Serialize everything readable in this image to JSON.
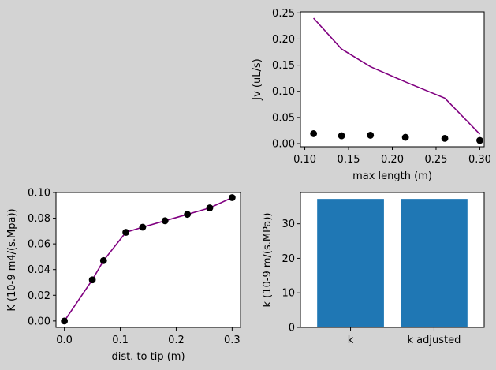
{
  "chart_data": [
    {
      "id": "jv",
      "type": "line",
      "xlabel": "max length (m)",
      "ylabel": "Jv (uL/s)",
      "xlim": [
        0.095,
        0.305
      ],
      "ylim": [
        -0.006,
        0.252
      ],
      "xticks": [
        0.1,
        0.15,
        0.2,
        0.25,
        0.3
      ],
      "xtick_labels": [
        "0.10",
        "0.15",
        "0.20",
        "0.25",
        "0.30"
      ],
      "yticks": [
        0.0,
        0.05,
        0.1,
        0.15,
        0.2,
        0.25
      ],
      "ytick_labels": [
        "0.00",
        "0.05",
        "0.10",
        "0.15",
        "0.20",
        "0.25"
      ],
      "grid": false,
      "series": [
        {
          "style": "line",
          "color": "#800080",
          "x": [
            0.11,
            0.142,
            0.175,
            0.215,
            0.26,
            0.3
          ],
          "y": [
            0.24,
            0.181,
            0.147,
            0.118,
            0.087,
            0.018
          ]
        },
        {
          "style": "points",
          "color": "#000000",
          "x": [
            0.11,
            0.142,
            0.175,
            0.215,
            0.26,
            0.3
          ],
          "y": [
            0.019,
            0.015,
            0.016,
            0.012,
            0.01,
            0.006
          ]
        }
      ]
    },
    {
      "id": "K",
      "type": "line",
      "xlabel": "dist. to tip (m)",
      "ylabel": "K (10-9 m4/(s.Mpa))",
      "xlim": [
        -0.015,
        0.315
      ],
      "ylim": [
        -0.005,
        0.1
      ],
      "xticks": [
        0.0,
        0.1,
        0.2,
        0.3
      ],
      "xtick_labels": [
        "0.0",
        "0.1",
        "0.2",
        "0.3"
      ],
      "yticks": [
        0.0,
        0.02,
        0.04,
        0.06,
        0.08,
        0.1
      ],
      "ytick_labels": [
        "0.00",
        "0.02",
        "0.04",
        "0.06",
        "0.08",
        "0.10"
      ],
      "grid": false,
      "series": [
        {
          "style": "line+points",
          "line_color": "#800080",
          "marker_color": "#000000",
          "x": [
            0.0,
            0.05,
            0.07,
            0.11,
            0.14,
            0.18,
            0.22,
            0.26,
            0.3
          ],
          "y": [
            0.0,
            0.032,
            0.047,
            0.069,
            0.073,
            0.078,
            0.083,
            0.088,
            0.096
          ]
        }
      ]
    },
    {
      "id": "k",
      "type": "bar",
      "xlabel": "",
      "ylabel": "k (10-9 m/(s.MPa))",
      "categories": [
        "k",
        "k adjusted"
      ],
      "values": [
        37.2,
        37.2
      ],
      "color": "#1f77b4",
      "ylim": [
        0,
        39.06
      ],
      "yticks": [
        0,
        10,
        20,
        30
      ],
      "ytick_labels": [
        "0",
        "10",
        "20",
        "30"
      ],
      "grid": false
    }
  ]
}
